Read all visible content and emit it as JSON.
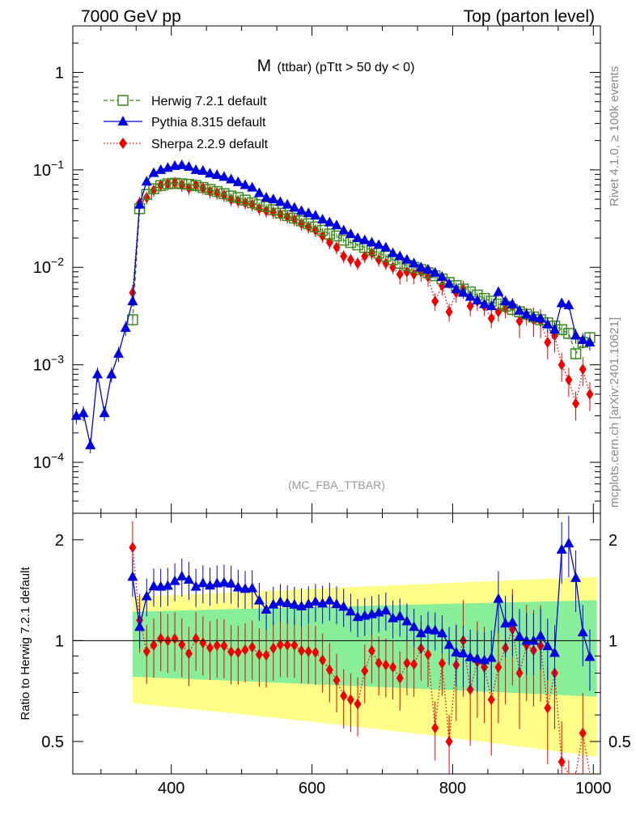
{
  "header": {
    "left": "7000 GeV pp",
    "right": "Top (parton level)"
  },
  "side_labels": {
    "rivet": "Rivet 4.1.0, ≥ 100k events",
    "mcplots": "mcplots.cern.ch [arXiv:2401.10621]"
  },
  "colors": {
    "herwig": "#3a8a1c",
    "pythia": "#0000dd",
    "sherpa": "#ee0000",
    "band_outer": "#ffff88",
    "band_inner": "#88ee99"
  },
  "chart_data": [
    {
      "type": "line",
      "name": "main",
      "title_main": "M",
      "title_sub": "(ttbar) (pTtt > 50 dy < 0)",
      "watermark": "(MC_FBA_TTBAR)",
      "xlim": [
        260,
        1010
      ],
      "ylim": [
        3e-05,
        3
      ],
      "yscale": "log",
      "y_tick_labels": [
        {
          "v": 1,
          "base": "1",
          "exp": ""
        },
        {
          "v": 0.1,
          "base": "10",
          "exp": "−1"
        },
        {
          "v": 0.01,
          "base": "10",
          "exp": "−2"
        },
        {
          "v": 0.001,
          "base": "10",
          "exp": "−3"
        },
        {
          "v": 0.0001,
          "base": "10",
          "exp": "−4"
        }
      ],
      "legend": [
        {
          "key": "herwig",
          "label": "Herwig 7.2.1 default",
          "style": "dashed",
          "marker": "square-open"
        },
        {
          "key": "pythia",
          "label": "Pythia 8.315 default",
          "style": "solid",
          "marker": "triangle"
        },
        {
          "key": "sherpa",
          "label": "Sherpa 2.2.9 default",
          "style": "dotted",
          "marker": "diamond"
        }
      ],
      "series": [
        {
          "key": "herwig",
          "name": "Herwig 7.2.1 default",
          "x": [
            345,
            355,
            365,
            375,
            385,
            395,
            405,
            415,
            425,
            435,
            445,
            455,
            465,
            475,
            485,
            495,
            505,
            515,
            525,
            535,
            545,
            555,
            565,
            575,
            585,
            595,
            605,
            615,
            625,
            635,
            645,
            655,
            665,
            675,
            685,
            695,
            705,
            715,
            725,
            735,
            745,
            755,
            765,
            775,
            785,
            795,
            805,
            815,
            825,
            835,
            845,
            855,
            865,
            875,
            885,
            895,
            905,
            915,
            925,
            935,
            945,
            955,
            965,
            975,
            985,
            995
          ],
          "y": [
            0.0029,
            0.04,
            0.056,
            0.064,
            0.069,
            0.072,
            0.073,
            0.072,
            0.071,
            0.069,
            0.066,
            0.063,
            0.06,
            0.057,
            0.054,
            0.052,
            0.049,
            0.046,
            0.044,
            0.042,
            0.039,
            0.036,
            0.034,
            0.032,
            0.03,
            0.028,
            0.026,
            0.024,
            0.022,
            0.021,
            0.019,
            0.018,
            0.017,
            0.016,
            0.015,
            0.014,
            0.013,
            0.012,
            0.011,
            0.0105,
            0.01,
            0.0095,
            0.0088,
            0.0082,
            0.0076,
            0.007,
            0.0065,
            0.006,
            0.0056,
            0.0052,
            0.0048,
            0.0045,
            0.0042,
            0.004,
            0.0037,
            0.0035,
            0.0033,
            0.0031,
            0.0029,
            0.0027,
            0.0025,
            0.0023,
            0.0021,
            0.0013,
            0.0017,
            0.0019
          ],
          "err_frac": 0.06
        },
        {
          "key": "pythia",
          "name": "Pythia 8.315 default",
          "x": [
            265,
            275,
            285,
            295,
            305,
            315,
            325,
            335,
            345,
            355,
            365,
            375,
            385,
            395,
            405,
            415,
            425,
            435,
            445,
            455,
            465,
            475,
            485,
            495,
            505,
            515,
            525,
            535,
            545,
            555,
            565,
            575,
            585,
            595,
            605,
            615,
            625,
            635,
            645,
            655,
            665,
            675,
            685,
            695,
            705,
            715,
            725,
            735,
            745,
            755,
            765,
            775,
            785,
            795,
            805,
            815,
            825,
            835,
            845,
            855,
            865,
            875,
            885,
            895,
            905,
            915,
            925,
            935,
            945,
            955,
            965,
            975,
            985,
            995
          ],
          "y": [
            0.0003,
            0.00032,
            0.00015,
            0.0008,
            0.00032,
            0.0008,
            0.0013,
            0.0024,
            0.0045,
            0.044,
            0.076,
            0.093,
            0.1,
            0.105,
            0.11,
            0.112,
            0.108,
            0.1,
            0.098,
            0.092,
            0.089,
            0.085,
            0.08,
            0.075,
            0.07,
            0.066,
            0.058,
            0.052,
            0.05,
            0.047,
            0.044,
            0.041,
            0.038,
            0.036,
            0.034,
            0.031,
            0.029,
            0.027,
            0.024,
            0.022,
            0.02,
            0.019,
            0.018,
            0.017,
            0.016,
            0.014,
            0.013,
            0.012,
            0.011,
            0.01,
            0.0095,
            0.0088,
            0.008,
            0.0068,
            0.006,
            0.0055,
            0.005,
            0.0046,
            0.0042,
            0.004,
            0.0056,
            0.0045,
            0.0042,
            0.0036,
            0.0033,
            0.0031,
            0.003,
            0.0026,
            0.0023,
            0.0043,
            0.0041,
            0.002,
            0.0018,
            0.0017
          ],
          "err_frac": 0.08
        },
        {
          "key": "sherpa",
          "name": "Sherpa 2.2.9 default",
          "x": [
            345,
            355,
            365,
            375,
            385,
            395,
            405,
            415,
            425,
            435,
            445,
            455,
            465,
            475,
            485,
            495,
            505,
            515,
            525,
            535,
            545,
            555,
            565,
            575,
            585,
            595,
            605,
            615,
            625,
            635,
            645,
            655,
            665,
            675,
            685,
            695,
            705,
            715,
            725,
            735,
            745,
            755,
            765,
            775,
            785,
            795,
            805,
            815,
            825,
            835,
            845,
            855,
            865,
            875,
            885,
            895,
            905,
            915,
            925,
            935,
            945,
            955,
            965,
            975,
            985,
            995
          ],
          "y": [
            0.0055,
            0.046,
            0.052,
            0.062,
            0.07,
            0.072,
            0.074,
            0.07,
            0.065,
            0.07,
            0.065,
            0.06,
            0.058,
            0.055,
            0.05,
            0.048,
            0.046,
            0.044,
            0.04,
            0.038,
            0.037,
            0.035,
            0.033,
            0.031,
            0.028,
            0.026,
            0.024,
            0.021,
            0.018,
            0.016,
            0.013,
            0.012,
            0.011,
            0.013,
            0.014,
            0.012,
            0.011,
            0.01,
            0.0085,
            0.009,
            0.0085,
            0.009,
            0.008,
            0.0045,
            0.0065,
            0.0035,
            0.0055,
            0.006,
            0.004,
            0.0045,
            0.004,
            0.003,
            0.0035,
            0.0038,
            0.004,
            0.0028,
            0.0032,
            0.0029,
            0.0028,
            0.0017,
            0.002,
            0.001,
            0.0007,
            0.0004,
            0.0009,
            0.0005
          ],
          "err_frac": 0.15
        }
      ]
    },
    {
      "type": "line",
      "name": "ratio",
      "ylabel": "Ratio to Herwig 7.2.1 default",
      "xlim": [
        260,
        1010
      ],
      "ylim": [
        0.4,
        2.4
      ],
      "yscale": "log",
      "x_ticks": [
        400,
        600,
        800,
        1000
      ],
      "y_ticks": [
        0.5,
        1,
        2
      ],
      "reference_line": 1,
      "band_x": [
        345,
        1005
      ],
      "band_inner_halfwidth_start": 0.22,
      "band_inner_halfwidth_end": 0.32,
      "band_outer_halfwidth_start": 0.35,
      "band_outer_halfwidth_end": 0.55
    }
  ]
}
